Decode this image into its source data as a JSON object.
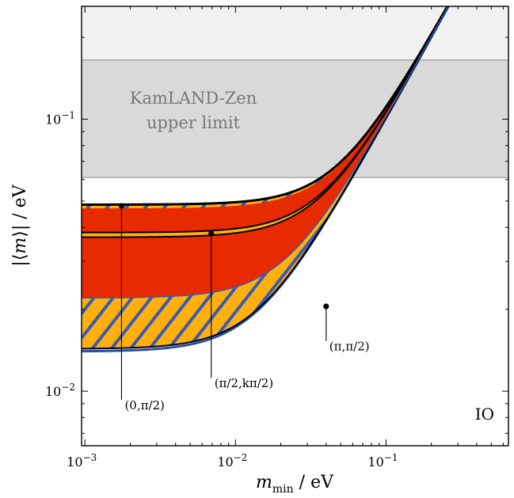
{
  "chart_data": {
    "type": "area",
    "xscale": "log",
    "yscale": "log",
    "xlim": [
      0.00095,
      0.65
    ],
    "ylim": [
      0.0063,
      0.26
    ],
    "xlabel": "m_min / eV",
    "ylabel": "|⟨m⟩| / eV",
    "xticks": [
      {
        "value": 0.001,
        "base": "10",
        "exp": "−3"
      },
      {
        "value": 0.01,
        "base": "10",
        "exp": "−2"
      },
      {
        "value": 0.1,
        "base": "10",
        "exp": "−1"
      }
    ],
    "yticks": [
      {
        "value": 0.01,
        "base": "10",
        "exp": "−2"
      },
      {
        "value": 0.1,
        "base": "10",
        "exp": "−1"
      }
    ],
    "exclusion_band": {
      "label_line1": "KamLAND-Zen",
      "label_line2": "upper limit",
      "y_range": [
        0.061,
        0.165
      ]
    },
    "hierarchy_label": "IO",
    "bands": [
      {
        "name": "outer",
        "lower_limit": 0.0142,
        "upper_limit": 0.049,
        "color": "#ffb00f",
        "hatch": "#3a5bb0"
      },
      {
        "name": "inner",
        "lower_limit": 0.022,
        "upper_limit": 0.047,
        "color": "#e82a00"
      }
    ],
    "curves": [
      {
        "name": "(0,π/2)",
        "limit": 0.0485
      },
      {
        "name": "(π/2,kπ/2)",
        "limit": 0.0383
      },
      {
        "name": "(π/2,kπ/2) lower",
        "limit": 0.0368
      },
      {
        "name": "(π,π/2)",
        "limit": 0.0143
      }
    ],
    "annotations": [
      {
        "label": "(0,π/2)",
        "point_x": 0.00175,
        "point_y": 0.048,
        "label_y": 0.0093
      },
      {
        "label": "(π/2,kπ/2)",
        "point_x": 0.0069,
        "point_y": 0.038,
        "label_y": 0.0112
      },
      {
        "label": "(π,π/2)",
        "point_x": 0.04,
        "point_y": 0.0205,
        "label_y": 0.0153
      }
    ]
  }
}
